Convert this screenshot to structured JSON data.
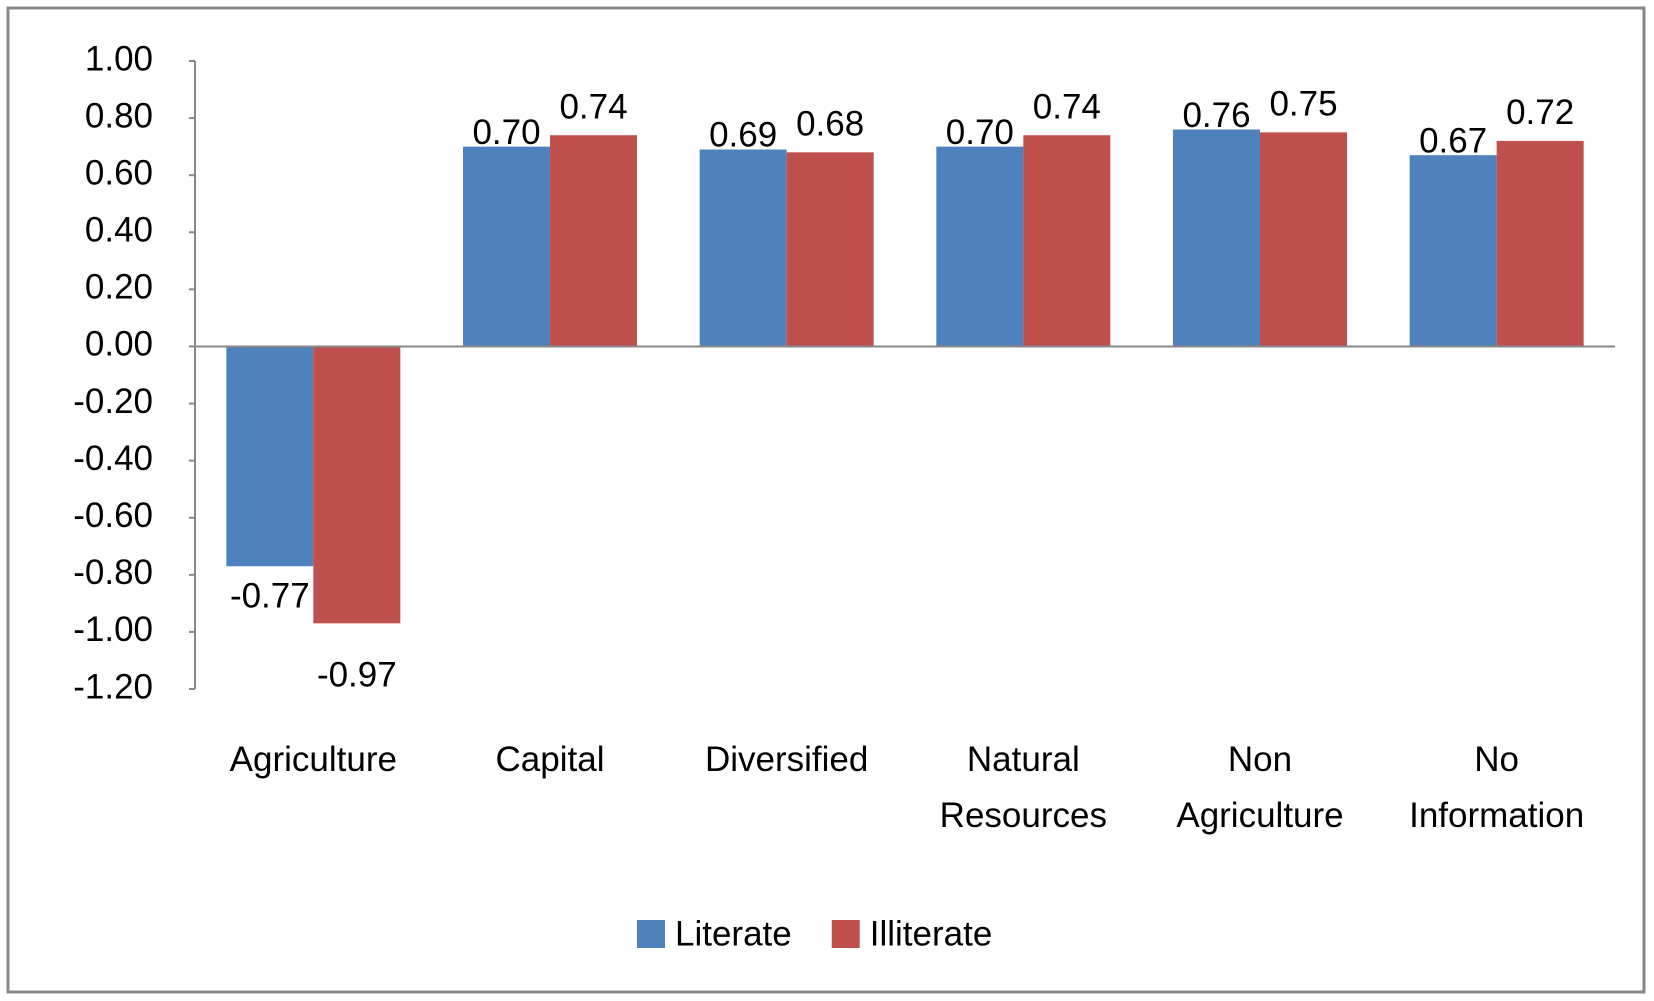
{
  "chart_data": {
    "type": "bar",
    "categories": [
      "Agriculture",
      "Capital",
      "Diversified",
      "Natural Resources",
      "Non Agriculture",
      "No Information"
    ],
    "series": [
      {
        "name": "Literate",
        "color": "#4f81bd",
        "values": [
          -0.77,
          0.7,
          0.69,
          0.7,
          0.76,
          0.67
        ],
        "value_labels": [
          "-0.77",
          "0.70",
          "0.69",
          "0.70",
          "0.76",
          "0.67"
        ]
      },
      {
        "name": "Illiterate",
        "color": "#c0504d",
        "values": [
          -0.97,
          0.74,
          0.68,
          0.74,
          0.75,
          0.72
        ],
        "value_labels": [
          "-0.97",
          "0.74",
          "0.68",
          "0.74",
          "0.75",
          "0.72"
        ]
      }
    ],
    "ylim": [
      -1.2,
      1.0
    ],
    "yticks": [
      {
        "value": 1.0,
        "label": "1.00"
      },
      {
        "value": 0.8,
        "label": "0.80"
      },
      {
        "value": 0.6,
        "label": "0.60"
      },
      {
        "value": 0.4,
        "label": "0.40"
      },
      {
        "value": 0.2,
        "label": "0.20"
      },
      {
        "value": 0.0,
        "label": "0.00"
      },
      {
        "value": -0.2,
        "label": "-0.20"
      },
      {
        "value": -0.4,
        "label": "-0.40"
      },
      {
        "value": -0.6,
        "label": "-0.60"
      },
      {
        "value": -0.8,
        "label": "-0.80"
      },
      {
        "value": -1.0,
        "label": "-1.00"
      },
      {
        "value": -1.2,
        "label": "-1.20"
      }
    ],
    "grid": false,
    "legend": "bottom"
  }
}
